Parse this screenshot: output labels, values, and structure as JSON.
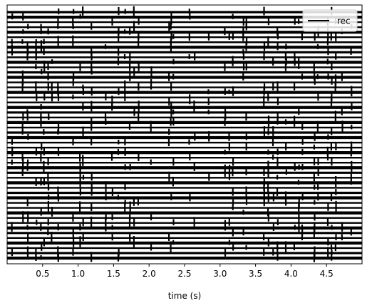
{
  "chart_data": {
    "type": "line",
    "title": "",
    "xlabel": "time (s)",
    "ylabel": "",
    "xlim": [
      0,
      5.0
    ],
    "xticks": [
      0.5,
      1.0,
      1.5,
      2.0,
      2.5,
      3.0,
      3.5,
      4.0,
      4.5
    ],
    "xtick_labels": [
      "0.5",
      "1.0",
      "1.5",
      "2.0",
      "2.5",
      "3.0",
      "3.5",
      "4.0",
      "4.5"
    ],
    "yticks_shown": false,
    "grid": false,
    "legend": {
      "entries": [
        "rec"
      ],
      "placement": "top-right"
    },
    "line_color": "#000000",
    "series": [
      {
        "name": "rec",
        "trace_count": 50,
        "spike_times_s": [
          0.07,
          0.22,
          0.29,
          0.41,
          0.48,
          0.52,
          0.58,
          0.63,
          0.72,
          0.93,
          1.03,
          1.07,
          1.19,
          1.39,
          1.48,
          1.57,
          1.66,
          1.73,
          1.79,
          1.85,
          2.03,
          2.28,
          2.31,
          2.34,
          2.57,
          2.64,
          2.84,
          3.07,
          3.13,
          3.18,
          3.33,
          3.37,
          3.62,
          3.68,
          3.75,
          3.81,
          3.93,
          4.05,
          4.11,
          4.16,
          4.33,
          4.38,
          4.52,
          4.57,
          4.63,
          4.72,
          4.85
        ]
      }
    ]
  }
}
